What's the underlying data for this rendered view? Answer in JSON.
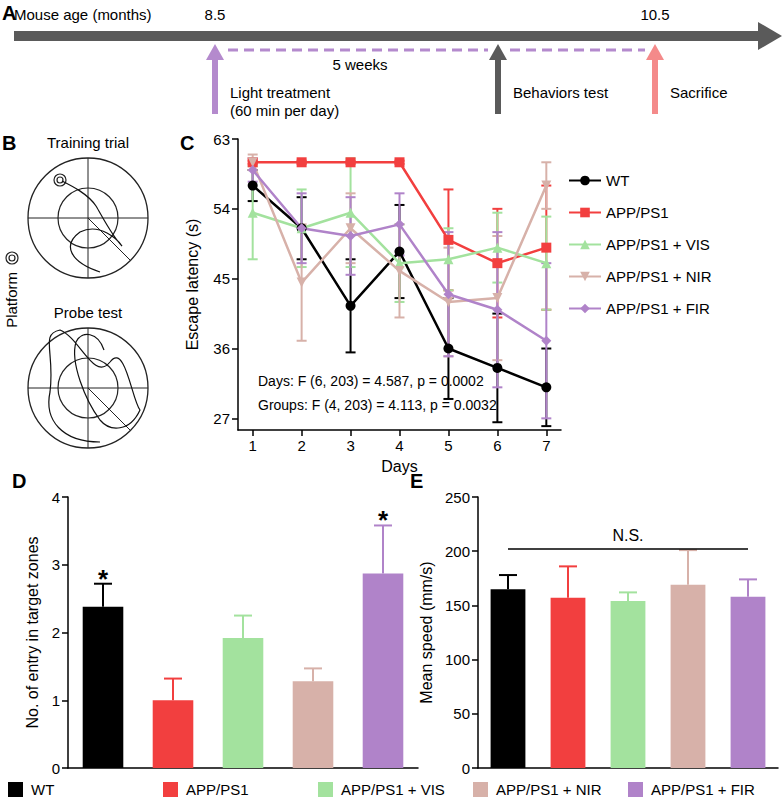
{
  "timeline": {
    "panel": "A",
    "axis_label": "Mouse age (months)",
    "ages": [
      8.5,
      10.5
    ],
    "period": "5 weeks",
    "events": [
      {
        "lines": [
          "Light treatment",
          "(60 min per day)"
        ],
        "color": "#b48acd"
      },
      {
        "lines": [
          "Behaviors test"
        ],
        "color": "#5a5a5a"
      },
      {
        "lines": [
          "Sacrifice"
        ],
        "color": "#f48a8a"
      }
    ]
  },
  "maze": {
    "panel": "B",
    "trials": [
      "Training trial",
      "Probe test"
    ],
    "platform": "Platform"
  },
  "chart_data": [
    {
      "panel": "C",
      "type": "line",
      "x": [
        1,
        2,
        3,
        4,
        5,
        6,
        7
      ],
      "xlim": [
        0.7,
        7.3
      ],
      "xticks": [
        1,
        2,
        3,
        4,
        5,
        6,
        7
      ],
      "ylim": [
        25.5,
        63
      ],
      "yticks": [
        27,
        36,
        45,
        54,
        63
      ],
      "x_label": "Days",
      "y_label": "Escape latency (s)",
      "legend": "right",
      "annotations": [
        "Days: F (6, 203) = 4.587, p = 0.0002",
        "Groups: F (4, 203) = 4.113, p = 0.0032"
      ],
      "series": [
        {
          "name": "WT",
          "color": "#000000",
          "marker": "circle",
          "values": [
            57,
            51.5,
            41.5,
            48.5,
            36,
            33.5,
            31
          ],
          "errors": [
            2,
            4,
            6,
            6,
            6.5,
            7,
            5
          ]
        },
        {
          "name": "APP/PS1",
          "color": "#f23f3f",
          "marker": "square",
          "values": [
            60,
            60,
            60,
            60,
            50,
            47,
            49
          ],
          "errors": [
            0.2,
            0.2,
            0.2,
            0.2,
            6.5,
            7,
            8
          ]
        },
        {
          "name": "APP/PS1 + VIS",
          "color": "#a3e29e",
          "marker": "triangle",
          "values": [
            53.5,
            51.5,
            53.5,
            47,
            47.5,
            49,
            47
          ],
          "errors": [
            6,
            5,
            7,
            5,
            4,
            4.5,
            6
          ]
        },
        {
          "name": "APP/PS1 + NIR",
          "color": "#d7b1a9",
          "marker": "triangle-down",
          "values": [
            60,
            44.5,
            51.5,
            46,
            42,
            42.5,
            57
          ],
          "errors": [
            1,
            7.5,
            4.5,
            6,
            7,
            8,
            3
          ]
        },
        {
          "name": "APP/PS1 + FIR",
          "color": "#b083c9",
          "marker": "diamond",
          "values": [
            59,
            51.5,
            50.5,
            52,
            43,
            41,
            37
          ],
          "errors": [
            1.5,
            4.5,
            5,
            4,
            8,
            10,
            10
          ]
        }
      ]
    },
    {
      "panel": "D",
      "type": "bar",
      "categories": [
        "WT",
        "APP/PS1",
        "APP/PS1 + VIS",
        "APP/PS1 + NIR",
        "APP/PS1 + FIR"
      ],
      "colors": [
        "#000000",
        "#f23f3f",
        "#a3e29e",
        "#d7b1a9",
        "#b083c9"
      ],
      "values": [
        2.38,
        1.0,
        1.92,
        1.28,
        2.87
      ],
      "errors": [
        0.34,
        0.32,
        0.33,
        0.19,
        0.71
      ],
      "ylim": [
        0,
        4
      ],
      "yticks": [
        0,
        1,
        2,
        3,
        4
      ],
      "y_label": "No. of entry in target zones",
      "tick_labels": "y",
      "legend": "bottom",
      "annotations": [
        {
          "category": "WT",
          "text": "*"
        },
        {
          "category": "APP/PS1 + FIR",
          "text": "*"
        }
      ]
    },
    {
      "panel": "E",
      "type": "bar",
      "categories": [
        "WT",
        "APP/PS1",
        "APP/PS1 + VIS",
        "APP/PS1 + NIR",
        "APP/PS1 + FIR"
      ],
      "colors": [
        "#000000",
        "#f23f3f",
        "#a3e29e",
        "#d7b1a9",
        "#b083c9"
      ],
      "values": [
        165,
        157,
        154,
        169,
        158
      ],
      "errors": [
        13,
        29,
        8,
        32,
        16
      ],
      "ylim": [
        0,
        250
      ],
      "yticks": [
        0,
        50,
        100,
        150,
        200,
        250
      ],
      "y_label": "Mean speed (mm/s)",
      "tick_labels": "y",
      "annotations": [
        {
          "text": "N.S.",
          "from": "WT",
          "to": "APP/PS1 + FIR",
          "y": 202
        }
      ]
    }
  ]
}
